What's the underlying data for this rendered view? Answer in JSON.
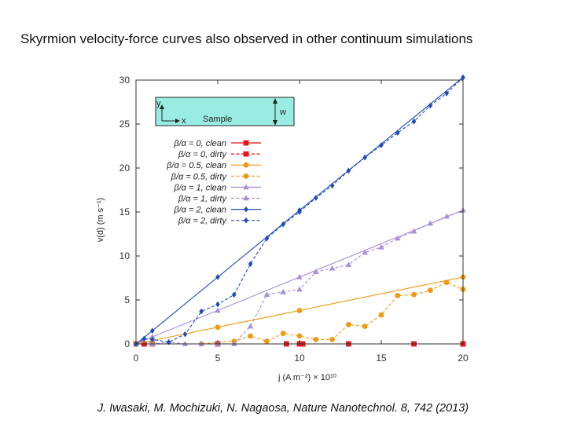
{
  "slide": {
    "title": "Skyrmion velocity-force curves also observed in other continuum simulations",
    "citation": "J. Iwasaki, M. Mochizuki, N. Nagaosa, Nature Nanotechnol. 8, 742 (2013)"
  },
  "chart_data": {
    "type": "line",
    "title": "",
    "xlabel": "j (A m⁻²) × 10¹⁰",
    "ylabel": "v(d) (m s⁻¹)",
    "xlim": [
      0,
      20
    ],
    "ylim": [
      0,
      30
    ],
    "xticks": [
      0,
      5,
      10,
      15,
      20
    ],
    "yticks": [
      0,
      5,
      10,
      15,
      20,
      25,
      30
    ],
    "legend_position": "upper-left",
    "inset": {
      "label": "Sample",
      "x_axis": "x",
      "y_axis": "y",
      "width_label": "w",
      "color": "#99ece2"
    },
    "series": [
      {
        "name": "β/α = 0, clean",
        "color": "#e8141b",
        "style": "solid",
        "marker": "square",
        "x": [
          0,
          1,
          5,
          10,
          20
        ],
        "y": [
          0,
          0,
          0,
          0,
          0
        ]
      },
      {
        "name": "β/α = 0, dirty",
        "color": "#e8141b",
        "style": "dashed",
        "marker": "square",
        "x": [
          0.5,
          9.2,
          10.2,
          13,
          17,
          20
        ],
        "y": [
          0,
          0,
          0,
          0,
          0,
          0
        ]
      },
      {
        "name": "β/α = 0.5, clean",
        "color": "#f09a12",
        "style": "solid",
        "marker": "circle",
        "x": [
          0,
          5,
          10,
          20
        ],
        "y": [
          0,
          1.9,
          3.8,
          7.6
        ]
      },
      {
        "name": "β/α = 0.5, dirty",
        "color": "#f09a12",
        "style": "dashed",
        "marker": "circle",
        "x": [
          0,
          1,
          4,
          6,
          7,
          8,
          9,
          10,
          11,
          12,
          13,
          14,
          15,
          16,
          17,
          18,
          19,
          20
        ],
        "y": [
          0,
          0,
          0,
          0.3,
          0.9,
          0.3,
          1.2,
          0.9,
          0.5,
          0.5,
          2.2,
          2.0,
          3.3,
          5.5,
          5.6,
          6.1,
          7.0,
          6.2
        ]
      },
      {
        "name": "β/α = 1, clean",
        "color": "#a78fdc",
        "style": "solid",
        "marker": "triangle",
        "x": [
          0,
          1,
          5,
          10,
          20
        ],
        "y": [
          0,
          0.8,
          3.8,
          7.6,
          15.2
        ]
      },
      {
        "name": "β/α = 1, dirty",
        "color": "#a78fdc",
        "style": "dashed",
        "marker": "triangle",
        "x": [
          0,
          1,
          2,
          3,
          4,
          5,
          6,
          7,
          8,
          9,
          10,
          11,
          12,
          13,
          14,
          15,
          16,
          17,
          18,
          19,
          20
        ],
        "y": [
          0,
          0,
          0.2,
          0,
          0,
          0,
          0,
          2.0,
          5.6,
          5.9,
          6.2,
          8.2,
          8.6,
          9.0,
          10.4,
          11.0,
          12.0,
          12.8,
          13.7,
          14.5,
          15.2
        ]
      },
      {
        "name": "β/α = 2, clean",
        "color": "#1e4db8",
        "style": "solid",
        "marker": "diamond",
        "x": [
          0,
          1,
          5,
          10,
          20
        ],
        "y": [
          0,
          1.5,
          7.6,
          15.2,
          30.3
        ]
      },
      {
        "name": "β/α = 2, dirty",
        "color": "#1e4db8",
        "style": "dashed",
        "marker": "diamond",
        "x": [
          0,
          0.5,
          1,
          2,
          3,
          4,
          5,
          6,
          7,
          8,
          9,
          10,
          11,
          12,
          13,
          14,
          15,
          16,
          17,
          18,
          19,
          20
        ],
        "y": [
          0,
          0.6,
          0.5,
          0.2,
          1.1,
          3.7,
          4.5,
          5.6,
          9.1,
          12.0,
          13.6,
          15.0,
          16.6,
          18.0,
          19.7,
          21.2,
          22.6,
          24.0,
          25.3,
          27.1,
          28.5,
          30.3
        ]
      }
    ]
  }
}
